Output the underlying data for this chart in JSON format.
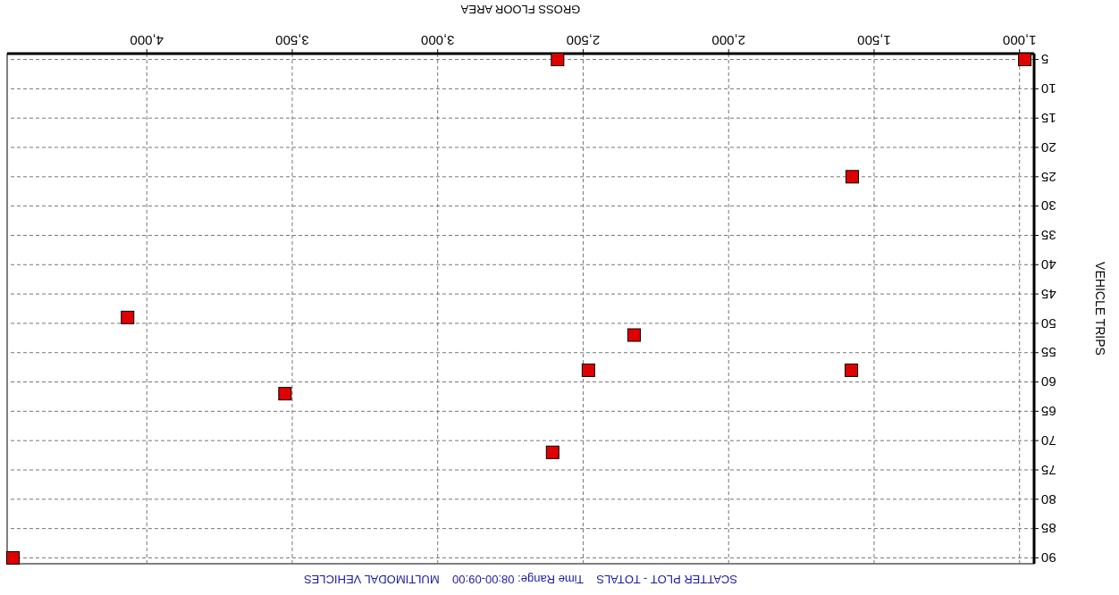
{
  "chart_data": {
    "type": "scatter",
    "title": "SCATTER PLOT - TOTALS    Time Range: 08:00-09:00    MULTIMODAL VEHICLES",
    "xlabel": "GROSS FLOOR AREA",
    "ylabel": "VEHICLE TRIPS",
    "xlim": [
      4480,
      950
    ],
    "ylim": [
      91,
      4
    ],
    "xticks": [
      {
        "value": 1000,
        "label": "1,000"
      },
      {
        "value": 1500,
        "label": "1,500"
      },
      {
        "value": 2000,
        "label": "2,000"
      },
      {
        "value": 2500,
        "label": "2,500"
      },
      {
        "value": 3000,
        "label": "3,000"
      },
      {
        "value": 3500,
        "label": "3,500"
      },
      {
        "value": 4000,
        "label": "4,000"
      }
    ],
    "yticks": [
      5,
      10,
      15,
      20,
      25,
      30,
      35,
      40,
      45,
      50,
      55,
      60,
      65,
      70,
      75,
      80,
      85,
      90
    ],
    "grid": true,
    "marker": "square",
    "series": [
      {
        "color": "#e00000",
        "x": [
          982,
          2588,
          1575,
          4066,
          2325,
          2482,
          1578,
          3525,
          2605,
          4460
        ],
        "values": [
          5,
          5,
          25,
          49,
          52,
          58,
          58,
          62,
          72,
          90
        ]
      }
    ]
  }
}
